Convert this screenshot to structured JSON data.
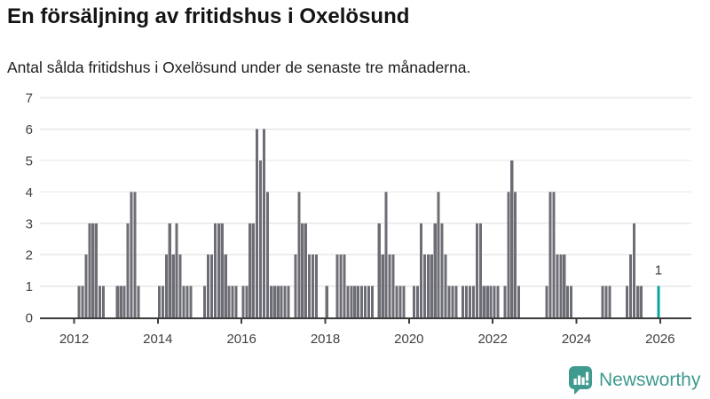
{
  "header": {
    "title": "En försäljning av fritidshus i Oxelösund",
    "subtitle": "Antal sålda fritidshus i Oxelösund under de senaste tre månaderna."
  },
  "footer": {
    "logo_text": "Newsworthy"
  },
  "colors": {
    "bar": "#6d6d75",
    "highlight": "#0aa59e",
    "grid": "#e7e7e7",
    "axis": "#3c3c3c",
    "tick_text": "#404040",
    "annotation_text": "#3c3c3c",
    "logo_teal": "#3f9a8f"
  },
  "chart_data": {
    "type": "bar",
    "title": "En försäljning av fritidshus i Oxelösund",
    "subtitle": "Antal sålda fritidshus i Oxelösund under de senaste tre månaderna.",
    "xlabel": "",
    "ylabel": "",
    "ylim": [
      0,
      7
    ],
    "yticks": [
      0,
      1,
      2,
      3,
      4,
      5,
      6,
      7
    ],
    "xticks": [
      "2012",
      "2014",
      "2016",
      "2018",
      "2020",
      "2022",
      "2024",
      "2026"
    ],
    "grid": true,
    "legend": "none",
    "x_unit": "month",
    "values_by_year": {
      "2011": [
        0,
        0,
        0,
        0,
        0,
        0,
        0,
        0,
        0,
        0,
        0,
        0
      ],
      "2012": [
        0,
        1,
        1,
        2,
        3,
        3,
        3,
        1,
        1,
        0,
        0,
        0
      ],
      "2013": [
        1,
        1,
        1,
        3,
        4,
        4,
        1,
        0,
        0,
        0,
        0,
        0
      ],
      "2014": [
        1,
        1,
        2,
        3,
        2,
        3,
        2,
        1,
        1,
        1,
        0,
        0
      ],
      "2015": [
        0,
        1,
        2,
        2,
        3,
        3,
        3,
        2,
        1,
        1,
        1,
        0
      ],
      "2016": [
        1,
        1,
        3,
        3,
        6,
        5,
        6,
        4,
        1,
        1,
        1,
        1
      ],
      "2017": [
        1,
        1,
        0,
        2,
        4,
        3,
        3,
        2,
        2,
        2,
        0,
        0
      ],
      "2018": [
        1,
        0,
        0,
        2,
        2,
        2,
        1,
        1,
        1,
        1,
        1,
        1
      ],
      "2019": [
        1,
        1,
        0,
        3,
        2,
        4,
        2,
        2,
        1,
        1,
        1,
        0
      ],
      "2020": [
        0,
        1,
        1,
        3,
        2,
        2,
        2,
        3,
        4,
        3,
        2,
        1
      ],
      "2021": [
        1,
        1,
        0,
        1,
        1,
        1,
        1,
        3,
        3,
        1,
        1,
        1
      ],
      "2022": [
        1,
        1,
        0,
        1,
        4,
        5,
        4,
        1,
        0,
        0,
        0,
        0
      ],
      "2023": [
        0,
        0,
        0,
        1,
        4,
        4,
        2,
        2,
        2,
        1,
        1,
        0
      ],
      "2024": [
        0,
        0,
        0,
        0,
        0,
        0,
        0,
        1,
        1,
        1,
        0,
        0
      ],
      "2025": [
        0,
        0,
        1,
        2,
        3,
        1,
        1,
        0,
        0,
        0,
        0,
        1
      ]
    },
    "highlight": {
      "month": "2025-12",
      "value": 1,
      "label": "1"
    }
  }
}
